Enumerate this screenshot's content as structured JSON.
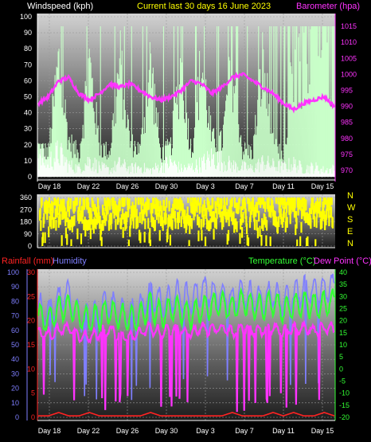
{
  "header": {
    "windspeed_label": "Windspeed (kph)",
    "title": "Current last 30 days 16 June 2023",
    "barometer_label": "Barometer (hpa)",
    "rainfall_label": "Rainfall (mm)",
    "humidity_label": "Humidity",
    "temperature_label": "Temperature (°C)",
    "dewpoint_label": "Dew Point (°C)"
  },
  "colors": {
    "windspeed": "#ffffff",
    "wind_gust": "#c9ffc9",
    "barometer": "#ff33ff",
    "title": "#ffff00",
    "direction": "#ffff00",
    "rainfall": "#ff2222",
    "humidity": "#7f7fff",
    "temperature": "#33ff33",
    "dewpoint": "#ff33ff"
  },
  "chart_data": [
    {
      "type": "line",
      "panel": "wind-barometer",
      "x_ticks": [
        "Day 18",
        "Day 22",
        "Day 26",
        "Day 30",
        "Day 3",
        "Day 7",
        "Day 11",
        "Day 15"
      ],
      "left_axis": {
        "label": "Windspeed (kph)",
        "ylim": [
          0,
          100
        ],
        "ticks": [
          0,
          10,
          20,
          30,
          40,
          50,
          60,
          70,
          80,
          90,
          100
        ]
      },
      "right_axis": {
        "label": "Barometer (hpa)",
        "ylim": [
          968,
          1018
        ],
        "ticks": [
          970,
          975,
          980,
          985,
          990,
          995,
          1000,
          1005,
          1010,
          1015
        ]
      },
      "barometer": [
        991,
        993,
        998,
        999,
        994,
        992,
        994,
        997,
        996,
        997,
        995,
        993,
        992,
        993,
        995,
        998,
        997,
        994,
        996,
        999,
        1000,
        998,
        996,
        994,
        991,
        989,
        991,
        992,
        993,
        990
      ],
      "wind_avg": [
        12,
        9,
        15,
        7,
        5,
        10,
        6,
        4,
        8,
        5,
        6,
        4,
        7,
        9,
        5,
        6,
        8,
        12,
        10,
        7,
        6,
        5,
        9,
        7,
        6,
        8,
        5,
        6,
        4,
        5
      ],
      "wind_gust": [
        25,
        20,
        94,
        30,
        18,
        94,
        25,
        20,
        94,
        28,
        22,
        94,
        18,
        25,
        94,
        20,
        94,
        30,
        28,
        94,
        22,
        20,
        94,
        25,
        18,
        94,
        94,
        94,
        94,
        94
      ]
    },
    {
      "type": "scatter",
      "panel": "wind-direction",
      "ylim": [
        0,
        360
      ],
      "ticks": [
        0,
        90,
        180,
        270,
        360
      ],
      "compass": [
        "N",
        "W",
        "S",
        "E",
        "N"
      ],
      "x_ticks": [
        "Day 18",
        "Day 22",
        "Day 26",
        "Day 30",
        "Day 3",
        "Day 7",
        "Day 11",
        "Day 15"
      ]
    },
    {
      "type": "line",
      "panel": "rain-humidity-temperature",
      "x_ticks": [
        "Day 18",
        "Day 22",
        "Day 26",
        "Day 30",
        "Day 3",
        "Day 7",
        "Day 11",
        "Day 15"
      ],
      "humidity_axis": {
        "label": "Humidity",
        "ylim": [
          0,
          100
        ],
        "ticks": [
          0,
          10,
          20,
          30,
          40,
          50,
          60,
          70,
          80,
          90,
          100
        ]
      },
      "rainfall_axis": {
        "label": "Rainfall (mm)",
        "ylim": [
          0,
          30
        ],
        "ticks": [
          0,
          5,
          10,
          15,
          20,
          25,
          30
        ]
      },
      "temperature_axis": {
        "label": "Temperature (°C)",
        "ylim": [
          -20,
          40
        ],
        "ticks": [
          -20,
          -15,
          -10,
          -5,
          0,
          5,
          10,
          15,
          20,
          25,
          30,
          35,
          40
        ]
      },
      "temperature": [
        22,
        20,
        25,
        26,
        22,
        20,
        22,
        24,
        22,
        20,
        22,
        26,
        22,
        25,
        24,
        22,
        25,
        26,
        27,
        25,
        28,
        26,
        25,
        28,
        24,
        26,
        27,
        26,
        27,
        28
      ],
      "dewpoint": [
        15,
        14,
        16,
        17,
        14,
        13,
        15,
        16,
        14,
        13,
        15,
        17,
        15,
        16,
        16,
        15,
        17,
        16,
        17,
        15,
        17,
        16,
        16,
        17,
        15,
        17,
        17,
        16,
        17,
        17
      ],
      "humidity": [
        75,
        72,
        80,
        85,
        70,
        68,
        74,
        78,
        72,
        70,
        76,
        86,
        78,
        82,
        84,
        80,
        88,
        86,
        85,
        80,
        86,
        82,
        80,
        86,
        78,
        84,
        88,
        86,
        88,
        90
      ],
      "rainfall": [
        0.3,
        0.3,
        1.0,
        0.3,
        0.3,
        1.0,
        0.3,
        0.3,
        0.3,
        0.3,
        0.3,
        1.0,
        0.3,
        0.3,
        0.3,
        0.3,
        0.3,
        0.3,
        0.3,
        1.0,
        0.3,
        0.3,
        0.3,
        1.0,
        0.3,
        1.0,
        0.3,
        0.3,
        1.0,
        0.3
      ]
    }
  ]
}
